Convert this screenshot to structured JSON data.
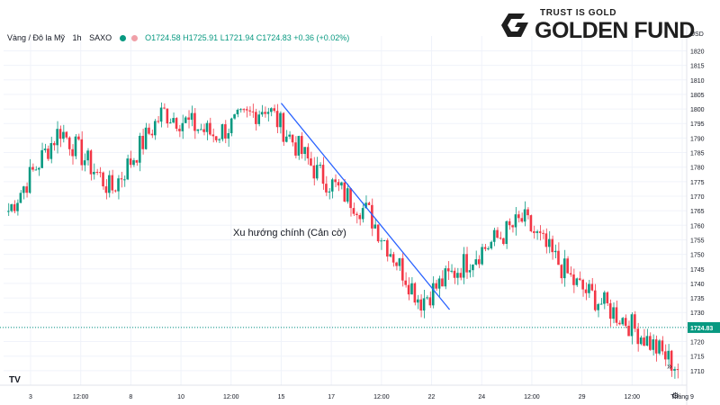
{
  "header": {
    "symbol": "Vàng / Đô la Mỹ",
    "interval": "1h",
    "source": "SAXO",
    "ohlc": "O1724.58 H1725.91 L1721.94 C1724.83 +0.36 (+0.02%)",
    "status_color": "#089981"
  },
  "logo": {
    "tagline": "TRUST IS GOLD",
    "name": "GOLDEN FUND"
  },
  "currency_label": "USD",
  "tv_logo": "TV",
  "controls": {
    "nav_right": "»",
    "settings": "⚙"
  },
  "colors": {
    "up": "#089981",
    "down": "#F23645",
    "trendline": "#2962FF",
    "last_price": "#089981"
  },
  "chart_data": {
    "type": "candlestick",
    "title": "",
    "ylim": [
      1705,
      1822
    ],
    "y_ticks": [
      1710,
      1715,
      1720,
      1725,
      1730,
      1735,
      1740,
      1745,
      1750,
      1755,
      1760,
      1765,
      1770,
      1775,
      1780,
      1785,
      1790,
      1795,
      1800,
      1805,
      1810,
      1815,
      1820
    ],
    "x_labels": [
      "3",
      "12:00",
      "8",
      "10",
      "12:00",
      "15",
      "17",
      "12:00",
      "22",
      "24",
      "12:00",
      "29",
      "12:00",
      "Tháng 9"
    ],
    "last_price": 1724.83,
    "last_price_label": "1724.83",
    "annotation": "Xu hướng chính (Cản cờ)",
    "trendline": [
      {
        "x": "15",
        "y": 1802
      },
      {
        "x": "22",
        "y": 1731
      }
    ],
    "series": [
      {
        "x": "3",
        "y": 1765
      },
      {
        "x": "12:00",
        "y": 1793
      },
      {
        "x": "8",
        "y": 1772
      },
      {
        "x": "10",
        "y": 1799
      },
      {
        "x": "12:00",
        "y": 1791
      },
      {
        "x": "15",
        "y": 1801
      },
      {
        "x": "17",
        "y": 1778
      },
      {
        "x": "12:00",
        "y": 1764
      },
      {
        "x": "22",
        "y": 1734
      },
      {
        "x": "24",
        "y": 1749
      },
      {
        "x": "12:00",
        "y": 1762
      },
      {
        "x": "29",
        "y": 1740
      },
      {
        "x": "12:00",
        "y": 1727
      },
      {
        "x": "Tháng 9",
        "y": 1711
      }
    ]
  }
}
